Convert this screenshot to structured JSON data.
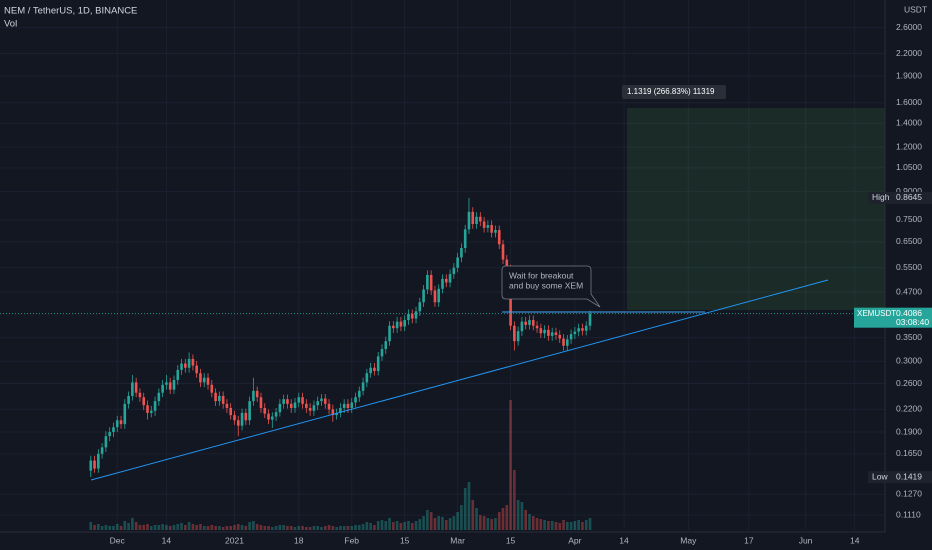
{
  "chart_data": {
    "type": "candlestick",
    "title": "NEM / TetherUS, 1D, BINANCE",
    "volume_label": "Vol",
    "axis_unit": "USDT",
    "symbol": "XEMUSDT",
    "countdown": "03:08:40",
    "high_label": "High",
    "low_label": "Low",
    "position_label": "1.1319 (266.83%) 11319",
    "callout": [
      "Wait for breakout",
      "and buy some XEM"
    ],
    "log_scale": true,
    "grid": true,
    "up_color": "#26a69a",
    "down_color": "#ef5350",
    "xlim": [
      "2020-10-31",
      "2021-06-22"
    ],
    "xticks": [
      {
        "value": "2020-12-01",
        "label": "Dec"
      },
      {
        "value": "2020-12-14",
        "label": "14"
      },
      {
        "value": "2021-01-01",
        "label": "2021"
      },
      {
        "value": "2021-01-18",
        "label": "18"
      },
      {
        "value": "2021-02-01",
        "label": "Feb"
      },
      {
        "value": "2021-02-15",
        "label": "15"
      },
      {
        "value": "2021-03-01",
        "label": "Mar"
      },
      {
        "value": "2021-03-15",
        "label": "15"
      },
      {
        "value": "2021-04-01",
        "label": "Apr"
      },
      {
        "value": "2021-04-14",
        "label": "14"
      },
      {
        "value": "2021-05-01",
        "label": "May"
      },
      {
        "value": "2021-05-17",
        "label": "17"
      },
      {
        "value": "2021-06-01",
        "label": "Jun"
      },
      {
        "value": "2021-06-14",
        "label": "14"
      }
    ],
    "ylim": [
      0.1008,
      3.11
    ],
    "yticks": [
      {
        "value": 0.111,
        "label": "0.1110"
      },
      {
        "value": 0.127,
        "label": "0.1270"
      },
      {
        "value": 0.165,
        "label": "0.1650"
      },
      {
        "value": 0.19,
        "label": "0.1900"
      },
      {
        "value": 0.22,
        "label": "0.2200"
      },
      {
        "value": 0.26,
        "label": "0.2600"
      },
      {
        "value": 0.3,
        "label": "0.3000"
      },
      {
        "value": 0.35,
        "label": "0.3500"
      },
      {
        "value": 0.47,
        "label": "0.4700"
      },
      {
        "value": 0.55,
        "label": "0.5500"
      },
      {
        "value": 0.65,
        "label": "0.6500"
      },
      {
        "value": 0.75,
        "label": "0.7500"
      },
      {
        "value": 0.9,
        "label": "0.9000"
      },
      {
        "value": 1.05,
        "label": "1.0500"
      },
      {
        "value": 1.2,
        "label": "1.2000"
      },
      {
        "value": 1.4,
        "label": "1.4000"
      },
      {
        "value": 1.6,
        "label": "1.6000"
      },
      {
        "value": 1.9,
        "label": "1.9000"
      },
      {
        "value": 2.2,
        "label": "2.2000"
      },
      {
        "value": 2.6,
        "label": "2.6000"
      }
    ],
    "x": [
      "2020-11-24",
      "2020-11-25",
      "2020-11-26",
      "2020-11-27",
      "2020-11-28",
      "2020-11-29",
      "2020-11-30",
      "2020-12-01",
      "2020-12-02",
      "2020-12-03",
      "2020-12-04",
      "2020-12-05",
      "2020-12-06",
      "2020-12-07",
      "2020-12-08",
      "2020-12-09",
      "2020-12-10",
      "2020-12-11",
      "2020-12-12",
      "2020-12-13",
      "2020-12-14",
      "2020-12-15",
      "2020-12-16",
      "2020-12-17",
      "2020-12-18",
      "2020-12-19",
      "2020-12-20",
      "2020-12-21",
      "2020-12-22",
      "2020-12-23",
      "2020-12-24",
      "2020-12-25",
      "2020-12-26",
      "2020-12-27",
      "2020-12-28",
      "2020-12-29",
      "2020-12-30",
      "2020-12-31",
      "2021-01-01",
      "2021-01-02",
      "2021-01-03",
      "2021-01-04",
      "2021-01-05",
      "2021-01-06",
      "2021-01-07",
      "2021-01-08",
      "2021-01-09",
      "2021-01-10",
      "2021-01-11",
      "2021-01-12",
      "2021-01-13",
      "2021-01-14",
      "2021-01-15",
      "2021-01-16",
      "2021-01-17",
      "2021-01-18",
      "2021-01-19",
      "2021-01-20",
      "2021-01-21",
      "2021-01-22",
      "2021-01-23",
      "2021-01-24",
      "2021-01-25",
      "2021-01-26",
      "2021-01-27",
      "2021-01-28",
      "2021-01-29",
      "2021-01-30",
      "2021-01-31",
      "2021-02-01",
      "2021-02-02",
      "2021-02-03",
      "2021-02-04",
      "2021-02-05",
      "2021-02-06",
      "2021-02-07",
      "2021-02-08",
      "2021-02-09",
      "2021-02-10",
      "2021-02-11",
      "2021-02-12",
      "2021-02-13",
      "2021-02-14",
      "2021-02-15",
      "2021-02-16",
      "2021-02-17",
      "2021-02-18",
      "2021-02-19",
      "2021-02-20",
      "2021-02-21",
      "2021-02-22",
      "2021-02-23",
      "2021-02-24",
      "2021-02-25",
      "2021-02-26",
      "2021-02-27",
      "2021-02-28",
      "2021-03-01",
      "2021-03-02",
      "2021-03-03",
      "2021-03-04",
      "2021-03-05",
      "2021-03-06",
      "2021-03-07",
      "2021-03-08",
      "2021-03-09",
      "2021-03-10",
      "2021-03-11",
      "2021-03-12",
      "2021-03-13",
      "2021-03-14",
      "2021-03-15",
      "2021-03-16",
      "2021-03-17",
      "2021-03-18",
      "2021-03-19",
      "2021-03-20",
      "2021-03-21",
      "2021-03-22",
      "2021-03-23",
      "2021-03-24",
      "2021-03-25",
      "2021-03-26",
      "2021-03-27",
      "2021-03-28",
      "2021-03-29",
      "2021-03-30",
      "2021-03-31",
      "2021-04-01",
      "2021-04-02",
      "2021-04-03",
      "2021-04-04",
      "2021-04-05"
    ],
    "open": [
      0.148,
      0.158,
      0.15,
      0.165,
      0.172,
      0.185,
      0.19,
      0.196,
      0.205,
      0.2,
      0.228,
      0.24,
      0.262,
      0.245,
      0.238,
      0.226,
      0.215,
      0.218,
      0.232,
      0.245,
      0.258,
      0.262,
      0.25,
      0.266,
      0.284,
      0.296,
      0.288,
      0.305,
      0.292,
      0.278,
      0.262,
      0.27,
      0.258,
      0.245,
      0.232,
      0.24,
      0.228,
      0.222,
      0.212,
      0.205,
      0.198,
      0.215,
      0.205,
      0.232,
      0.248,
      0.238,
      0.222,
      0.214,
      0.206,
      0.21,
      0.216,
      0.228,
      0.235,
      0.228,
      0.222,
      0.23,
      0.238,
      0.228,
      0.222,
      0.218,
      0.226,
      0.232,
      0.236,
      0.228,
      0.22,
      0.212,
      0.215,
      0.222,
      0.228,
      0.222,
      0.23,
      0.238,
      0.248,
      0.262,
      0.278,
      0.288,
      0.282,
      0.31,
      0.325,
      0.342,
      0.378,
      0.372,
      0.388,
      0.376,
      0.392,
      0.408,
      0.396,
      0.415,
      0.44,
      0.478,
      0.525,
      0.475,
      0.44,
      0.48,
      0.512,
      0.5,
      0.528,
      0.55,
      0.588,
      0.625,
      0.705,
      0.79,
      0.73,
      0.765,
      0.742,
      0.712,
      0.725,
      0.69,
      0.702,
      0.64,
      0.58,
      0.545,
      0.378,
      0.342,
      0.365,
      0.388,
      0.38,
      0.392,
      0.378,
      0.372,
      0.36,
      0.368,
      0.354,
      0.362,
      0.356,
      0.348,
      0.332,
      0.346,
      0.358,
      0.364,
      0.372,
      0.366,
      0.378
    ],
    "high": [
      0.163,
      0.163,
      0.17,
      0.177,
      0.191,
      0.196,
      0.202,
      0.211,
      0.211,
      0.235,
      0.247,
      0.275,
      0.27,
      0.252,
      0.245,
      0.233,
      0.225,
      0.239,
      0.252,
      0.266,
      0.275,
      0.27,
      0.274,
      0.293,
      0.305,
      0.305,
      0.318,
      0.314,
      0.301,
      0.286,
      0.278,
      0.278,
      0.266,
      0.252,
      0.247,
      0.247,
      0.235,
      0.229,
      0.218,
      0.211,
      0.221,
      0.221,
      0.239,
      0.27,
      0.255,
      0.245,
      0.229,
      0.22,
      0.216,
      0.222,
      0.235,
      0.242,
      0.242,
      0.235,
      0.237,
      0.245,
      0.245,
      0.235,
      0.229,
      0.233,
      0.239,
      0.243,
      0.243,
      0.235,
      0.227,
      0.221,
      0.229,
      0.235,
      0.235,
      0.237,
      0.245,
      0.255,
      0.27,
      0.286,
      0.297,
      0.297,
      0.319,
      0.335,
      0.352,
      0.389,
      0.389,
      0.4,
      0.4,
      0.404,
      0.42,
      0.42,
      0.427,
      0.453,
      0.492,
      0.541,
      0.541,
      0.489,
      0.494,
      0.527,
      0.527,
      0.544,
      0.567,
      0.606,
      0.644,
      0.726,
      0.8645,
      0.814,
      0.788,
      0.788,
      0.764,
      0.747,
      0.747,
      0.723,
      0.723,
      0.659,
      0.597,
      0.561,
      0.389,
      0.376,
      0.4,
      0.4,
      0.404,
      0.404,
      0.389,
      0.383,
      0.379,
      0.379,
      0.373,
      0.373,
      0.367,
      0.358,
      0.356,
      0.369,
      0.375,
      0.383,
      0.383,
      0.389,
      0.416
    ],
    "low": [
      0.1419,
      0.146,
      0.146,
      0.16,
      0.167,
      0.179,
      0.184,
      0.19,
      0.194,
      0.194,
      0.221,
      0.233,
      0.238,
      0.231,
      0.219,
      0.206,
      0.209,
      0.211,
      0.225,
      0.238,
      0.25,
      0.243,
      0.243,
      0.258,
      0.275,
      0.279,
      0.279,
      0.283,
      0.27,
      0.254,
      0.254,
      0.25,
      0.238,
      0.225,
      0.225,
      0.221,
      0.215,
      0.206,
      0.199,
      0.185,
      0.192,
      0.199,
      0.199,
      0.225,
      0.231,
      0.215,
      0.208,
      0.2,
      0.195,
      0.204,
      0.21,
      0.221,
      0.221,
      0.215,
      0.215,
      0.223,
      0.221,
      0.215,
      0.211,
      0.211,
      0.219,
      0.225,
      0.221,
      0.213,
      0.203,
      0.206,
      0.209,
      0.215,
      0.215,
      0.215,
      0.223,
      0.231,
      0.241,
      0.254,
      0.27,
      0.274,
      0.274,
      0.301,
      0.315,
      0.332,
      0.361,
      0.361,
      0.365,
      0.365,
      0.38,
      0.384,
      0.384,
      0.403,
      0.427,
      0.464,
      0.461,
      0.427,
      0.427,
      0.466,
      0.485,
      0.485,
      0.512,
      0.534,
      0.57,
      0.606,
      0.684,
      0.708,
      0.708,
      0.72,
      0.691,
      0.691,
      0.669,
      0.669,
      0.621,
      0.563,
      0.529,
      0.367,
      0.322,
      0.332,
      0.354,
      0.369,
      0.369,
      0.367,
      0.361,
      0.349,
      0.349,
      0.343,
      0.343,
      0.345,
      0.338,
      0.322,
      0.322,
      0.336,
      0.347,
      0.353,
      0.355,
      0.355,
      0.367
    ],
    "close": [
      0.158,
      0.15,
      0.165,
      0.172,
      0.185,
      0.19,
      0.196,
      0.205,
      0.2,
      0.228,
      0.24,
      0.262,
      0.245,
      0.238,
      0.226,
      0.215,
      0.218,
      0.232,
      0.245,
      0.258,
      0.262,
      0.25,
      0.266,
      0.284,
      0.296,
      0.288,
      0.305,
      0.292,
      0.278,
      0.262,
      0.27,
      0.258,
      0.245,
      0.232,
      0.24,
      0.228,
      0.222,
      0.212,
      0.205,
      0.198,
      0.215,
      0.205,
      0.232,
      0.248,
      0.238,
      0.222,
      0.214,
      0.206,
      0.21,
      0.216,
      0.228,
      0.235,
      0.228,
      0.222,
      0.23,
      0.238,
      0.228,
      0.222,
      0.218,
      0.226,
      0.232,
      0.236,
      0.228,
      0.22,
      0.212,
      0.215,
      0.222,
      0.228,
      0.222,
      0.23,
      0.238,
      0.248,
      0.262,
      0.278,
      0.288,
      0.282,
      0.31,
      0.325,
      0.342,
      0.378,
      0.372,
      0.388,
      0.376,
      0.392,
      0.408,
      0.396,
      0.415,
      0.44,
      0.478,
      0.525,
      0.475,
      0.44,
      0.48,
      0.512,
      0.5,
      0.528,
      0.55,
      0.588,
      0.625,
      0.705,
      0.79,
      0.73,
      0.765,
      0.742,
      0.712,
      0.725,
      0.69,
      0.702,
      0.64,
      0.58,
      0.545,
      0.378,
      0.342,
      0.365,
      0.388,
      0.38,
      0.392,
      0.378,
      0.372,
      0.36,
      0.368,
      0.354,
      0.362,
      0.356,
      0.348,
      0.332,
      0.346,
      0.358,
      0.364,
      0.372,
      0.366,
      0.378,
      0.4086
    ],
    "volume": [
      8,
      5,
      6,
      4,
      5,
      4,
      4,
      6,
      4,
      9,
      7,
      12,
      8,
      5,
      5,
      6,
      4,
      5,
      5,
      6,
      5,
      4,
      5,
      6,
      7,
      5,
      8,
      6,
      5,
      6,
      4,
      4,
      5,
      4,
      4,
      3,
      4,
      4,
      5,
      6,
      5,
      4,
      8,
      9,
      6,
      5,
      4,
      4,
      3,
      4,
      5,
      5,
      4,
      4,
      3,
      4,
      4,
      3,
      3,
      4,
      4,
      3,
      4,
      5,
      4,
      3,
      4,
      4,
      4,
      4,
      5,
      5,
      6,
      8,
      7,
      5,
      9,
      10,
      9,
      12,
      8,
      9,
      7,
      8,
      9,
      7,
      9,
      11,
      14,
      20,
      18,
      12,
      14,
      13,
      10,
      12,
      14,
      18,
      25,
      42,
      48,
      30,
      22,
      15,
      14,
      12,
      11,
      12,
      18,
      22,
      25,
      130,
      60,
      30,
      28,
      20,
      16,
      14,
      12,
      11,
      10,
      9,
      9,
      8,
      7,
      10,
      8,
      8,
      9,
      10,
      8,
      10,
      12
    ]
  }
}
